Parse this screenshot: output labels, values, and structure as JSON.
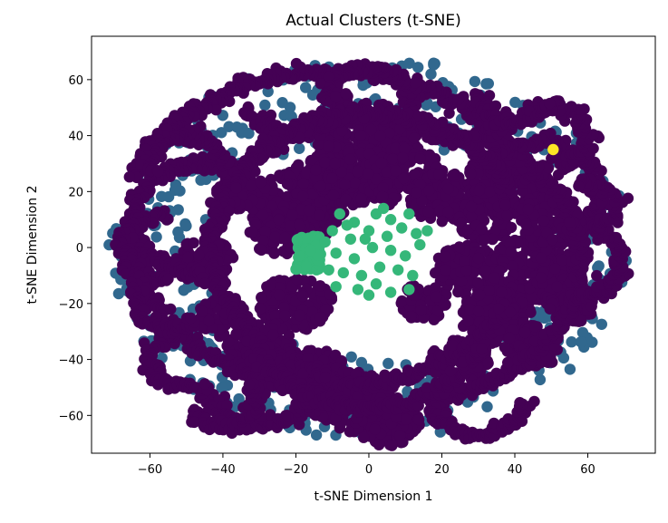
{
  "chart_data": {
    "type": "scatter",
    "title": "Actual Clusters (t-SNE)",
    "xlabel": "t-SNE Dimension 1",
    "ylabel": "t-SNE Dimension 2",
    "xlim": [
      -76,
      78.5
    ],
    "ylim": [
      -73.5,
      75.5
    ],
    "xticks": [
      -60,
      -40,
      -20,
      0,
      20,
      40,
      60
    ],
    "yticks": [
      -60,
      -40,
      -20,
      0,
      20,
      40,
      60
    ],
    "xtick_labels": [
      "−60",
      "−40",
      "−20",
      "0",
      "20",
      "40",
      "60"
    ],
    "ytick_labels": [
      "−60",
      "−40",
      "−20",
      "0",
      "20",
      "40",
      "60"
    ],
    "grid": false,
    "legend": "none",
    "colormap": "viridis",
    "colors": {
      "cluster_0": "#440154",
      "cluster_1": "#31688e",
      "cluster_2": "#35b779",
      "cluster_3": "#fde725"
    },
    "series": [
      {
        "color_key": "cluster_0",
        "shape": "dense clumps and curved chains inside roughly the circle of radius 67",
        "blobs": [
          [
            -20,
            14,
            13
          ],
          [
            -12,
            22,
            11
          ],
          [
            0,
            38,
            14
          ],
          [
            -5,
            25,
            10
          ],
          [
            10,
            25,
            11
          ],
          [
            20,
            18,
            9
          ],
          [
            32,
            10,
            8
          ],
          [
            40,
            22,
            11
          ],
          [
            27,
            -8,
            9
          ],
          [
            45,
            -8,
            13
          ],
          [
            35,
            -25,
            10
          ],
          [
            45,
            -35,
            8
          ],
          [
            25,
            -40,
            8
          ],
          [
            -20,
            -20,
            10
          ],
          [
            -30,
            -35,
            9
          ],
          [
            -15,
            -45,
            9
          ],
          [
            -5,
            -55,
            11
          ],
          [
            5,
            -62,
            9
          ],
          [
            -40,
            -25,
            7
          ],
          [
            -45,
            -5,
            8
          ],
          [
            -35,
            20,
            7
          ],
          [
            15,
            -20,
            7
          ],
          [
            -25,
            5,
            8
          ],
          [
            50,
            10,
            9
          ],
          [
            55,
            -20,
            7
          ]
        ],
        "arcs": [
          [
            -10,
            5,
            58,
            20,
            160
          ],
          [
            -10,
            5,
            55,
            190,
            330
          ],
          [
            5,
            0,
            48,
            100,
            250
          ],
          [
            8,
            -5,
            50,
            280,
            420
          ],
          [
            -45,
            10,
            20,
            60,
            270
          ],
          [
            45,
            20,
            18,
            -60,
            160
          ],
          [
            0,
            52,
            12,
            0,
            180
          ],
          [
            -30,
            -50,
            14,
            180,
            360
          ],
          [
            30,
            -55,
            12,
            150,
            360
          ],
          [
            55,
            -5,
            14,
            -90,
            90
          ],
          [
            -55,
            0,
            12,
            90,
            270
          ],
          [
            -20,
            55,
            14,
            200,
            360
          ],
          [
            25,
            52,
            14,
            180,
            340
          ],
          [
            0,
            -25,
            32,
            200,
            340
          ],
          [
            0,
            8,
            40,
            20,
            160
          ],
          [
            -50,
            30,
            10,
            0,
            200
          ],
          [
            50,
            40,
            10,
            -90,
            120
          ],
          [
            -50,
            -40,
            10,
            90,
            300
          ],
          [
            40,
            55,
            10,
            180,
            340
          ],
          [
            -55,
            -20,
            9,
            120,
            320
          ],
          [
            -40,
            -55,
            9,
            200,
            400
          ],
          [
            60,
            15,
            8,
            -80,
            110
          ]
        ]
      },
      {
        "color_key": "cluster_1",
        "shape": "scattered points in a ring between radius 40 and 70",
        "count": 520
      },
      {
        "color_key": "cluster_2",
        "shape": "small dense clump plus scattered points near the center",
        "dense": {
          "x_range": [
            -20,
            -13
          ],
          "y_range": [
            -8,
            4
          ],
          "count": 70
        },
        "points": [
          [
            -8,
            12
          ],
          [
            -4,
            9
          ],
          [
            2,
            12
          ],
          [
            6,
            10
          ],
          [
            11,
            12
          ],
          [
            -10,
            6
          ],
          [
            -5,
            3
          ],
          [
            0,
            6
          ],
          [
            5,
            4
          ],
          [
            9,
            7
          ],
          [
            13,
            5
          ],
          [
            -9,
            -2
          ],
          [
            -4,
            -4
          ],
          [
            1,
            0
          ],
          [
            6,
            -1
          ],
          [
            10,
            -3
          ],
          [
            14,
            1
          ],
          [
            -7,
            -9
          ],
          [
            -2,
            -10
          ],
          [
            3,
            -7
          ],
          [
            8,
            -8
          ],
          [
            12,
            -10
          ],
          [
            -9,
            -14
          ],
          [
            -3,
            -15
          ],
          [
            2,
            -13
          ],
          [
            6,
            -16
          ],
          [
            -12,
            2
          ],
          [
            -11,
            -8
          ],
          [
            16,
            6
          ],
          [
            4,
            14
          ],
          [
            -1,
            3
          ],
          [
            -6,
            8
          ],
          [
            11,
            -15
          ],
          [
            0,
            -17
          ]
        ]
      },
      {
        "color_key": "cluster_3",
        "shape": "single point",
        "points": [
          [
            50.5,
            35
          ]
        ]
      }
    ]
  }
}
